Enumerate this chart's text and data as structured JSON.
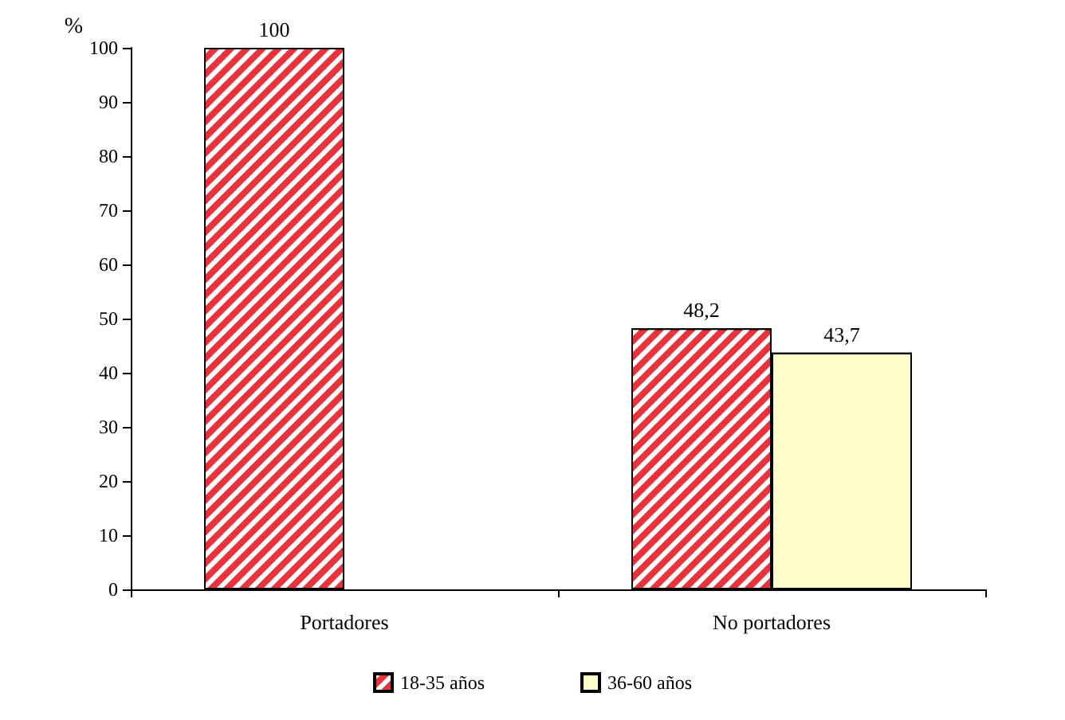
{
  "chart_data": {
    "type": "bar",
    "ylabel": "%",
    "categories": [
      "Portadores",
      "No portadores"
    ],
    "series": [
      {
        "name": "18-35 años",
        "color": "#e8333d",
        "values": [
          100,
          48.2
        ],
        "value_labels": [
          "100",
          "48,2"
        ]
      },
      {
        "name": "36-60 años",
        "color": "#ffffcc",
        "values": [
          null,
          43.7
        ],
        "value_labels": [
          null,
          "43,7"
        ]
      }
    ],
    "ylim": [
      0,
      100
    ],
    "yticks": [
      0,
      10,
      20,
      30,
      40,
      50,
      60,
      70,
      80,
      90,
      100
    ],
    "grid": false,
    "legend": "bottom"
  }
}
